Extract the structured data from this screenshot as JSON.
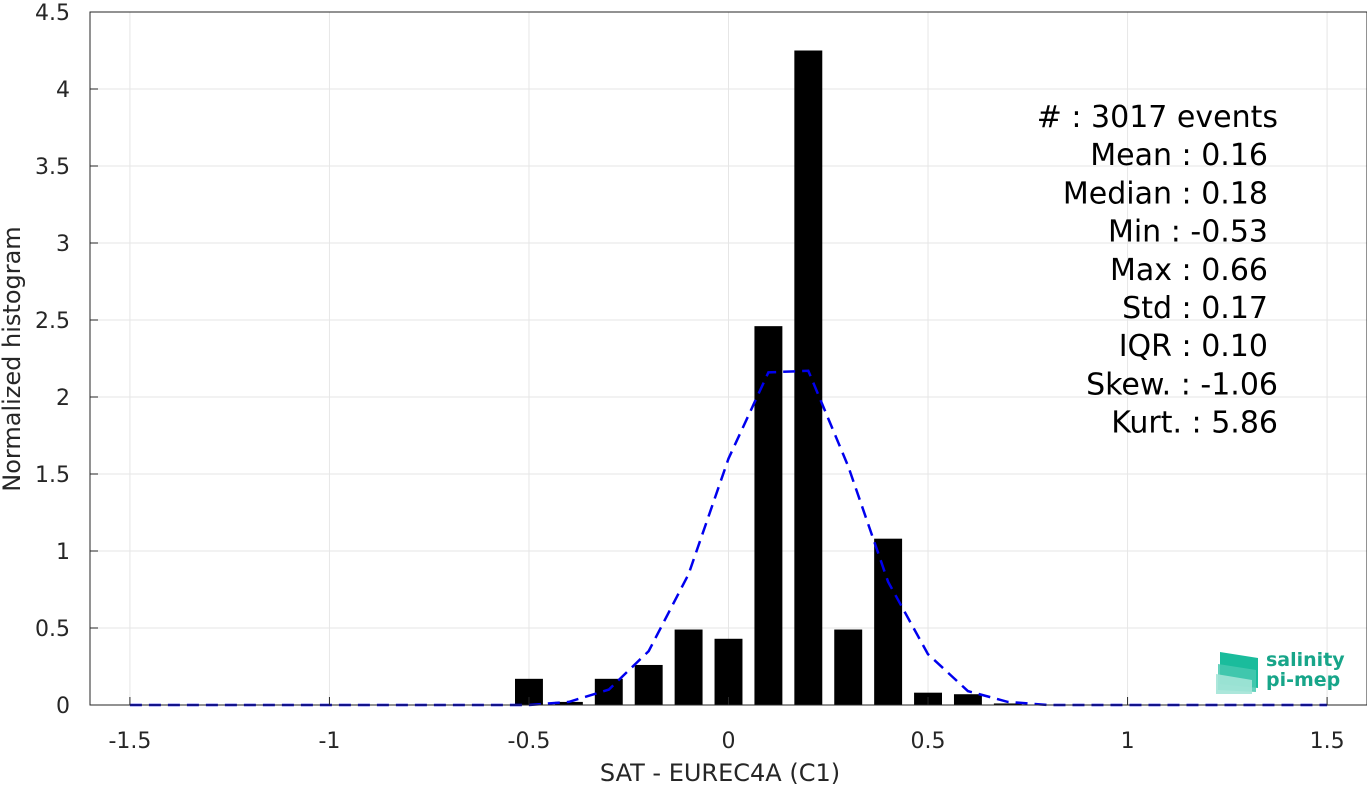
{
  "chart_data": {
    "type": "bar",
    "xlabel": "SAT - EUREC4A (C1)",
    "ylabel": "Normalized histogram",
    "xlim": [
      -1.6,
      1.6
    ],
    "ylim": [
      0,
      4.5
    ],
    "grid": true,
    "xticks": [
      -1.5,
      -1,
      -0.5,
      0,
      0.5,
      1,
      1.5
    ],
    "xtick_labels": [
      "-1.5",
      "-1",
      "-0.5",
      "0",
      "0.5",
      "1",
      "1.5"
    ],
    "yticks": [
      0,
      0.5,
      1,
      1.5,
      2,
      2.5,
      3,
      3.5,
      4,
      4.5
    ],
    "ytick_labels": [
      "0",
      "0.5",
      "1",
      "1.5",
      "2",
      "2.5",
      "3",
      "3.5",
      "4",
      "4.5"
    ],
    "bar_width": 0.07,
    "bars": {
      "x": [
        -0.5,
        -0.4,
        -0.3,
        -0.2,
        -0.1,
        0.0,
        0.1,
        0.2,
        0.3,
        0.4,
        0.5,
        0.6,
        0.7
      ],
      "values": [
        0.17,
        0.02,
        0.17,
        0.26,
        0.49,
        0.43,
        2.46,
        4.25,
        0.49,
        1.08,
        0.08,
        0.07,
        0.01
      ],
      "color": "#000000"
    },
    "fit_curve": {
      "style": "dashed",
      "color": "#0000ee",
      "x": [
        -1.5,
        -1.4,
        -1.3,
        -1.2,
        -1.1,
        -1.0,
        -0.9,
        -0.8,
        -0.7,
        -0.6,
        -0.5,
        -0.4,
        -0.3,
        -0.2,
        -0.1,
        0.0,
        0.1,
        0.2,
        0.3,
        0.4,
        0.5,
        0.6,
        0.7,
        0.8,
        0.9,
        1.0,
        1.1,
        1.2,
        1.3,
        1.4,
        1.5
      ],
      "y": [
        0,
        0,
        0,
        0,
        0,
        0,
        0,
        0,
        0,
        0,
        0.0,
        0.02,
        0.1,
        0.35,
        0.85,
        1.6,
        2.16,
        2.17,
        1.55,
        0.8,
        0.33,
        0.09,
        0.02,
        0,
        0,
        0,
        0,
        0,
        0,
        0,
        0
      ]
    },
    "stats": [
      {
        "label": "#  : 3017 events"
      },
      {
        "label": "Mean : 0.16"
      },
      {
        "label": "Median : 0.18"
      },
      {
        "label": "Min : -0.53"
      },
      {
        "label": "Max : 0.66"
      },
      {
        "label": "Std : 0.17"
      },
      {
        "label": "IQR : 0.10"
      },
      {
        "label": "Skew. : -1.06"
      },
      {
        "label": "Kurt. : 5.86"
      }
    ]
  },
  "logo": {
    "line1": "salinity",
    "line2": "pi-mep",
    "color": "#17a589"
  }
}
